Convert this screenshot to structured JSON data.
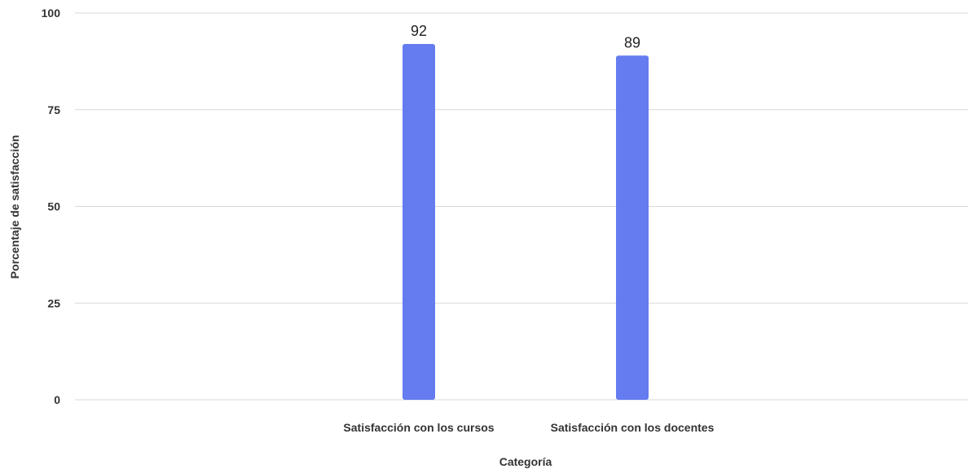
{
  "chart_data": {
    "type": "bar",
    "categories": [
      "Satisfacción con los cursos",
      "Satisfacción con los docentes"
    ],
    "values": [
      92,
      89
    ],
    "data_labels": [
      "92",
      "89"
    ],
    "xlabel": "Categoría",
    "ylabel": "Porcentaje de satisfacción",
    "ylim": [
      0,
      100
    ],
    "yticks": [
      "0",
      "25",
      "50",
      "75",
      "100"
    ],
    "ytick_values": [
      0,
      25,
      50,
      75,
      100
    ],
    "grid": true,
    "bar_color": "#647cf0",
    "legend": "none"
  }
}
